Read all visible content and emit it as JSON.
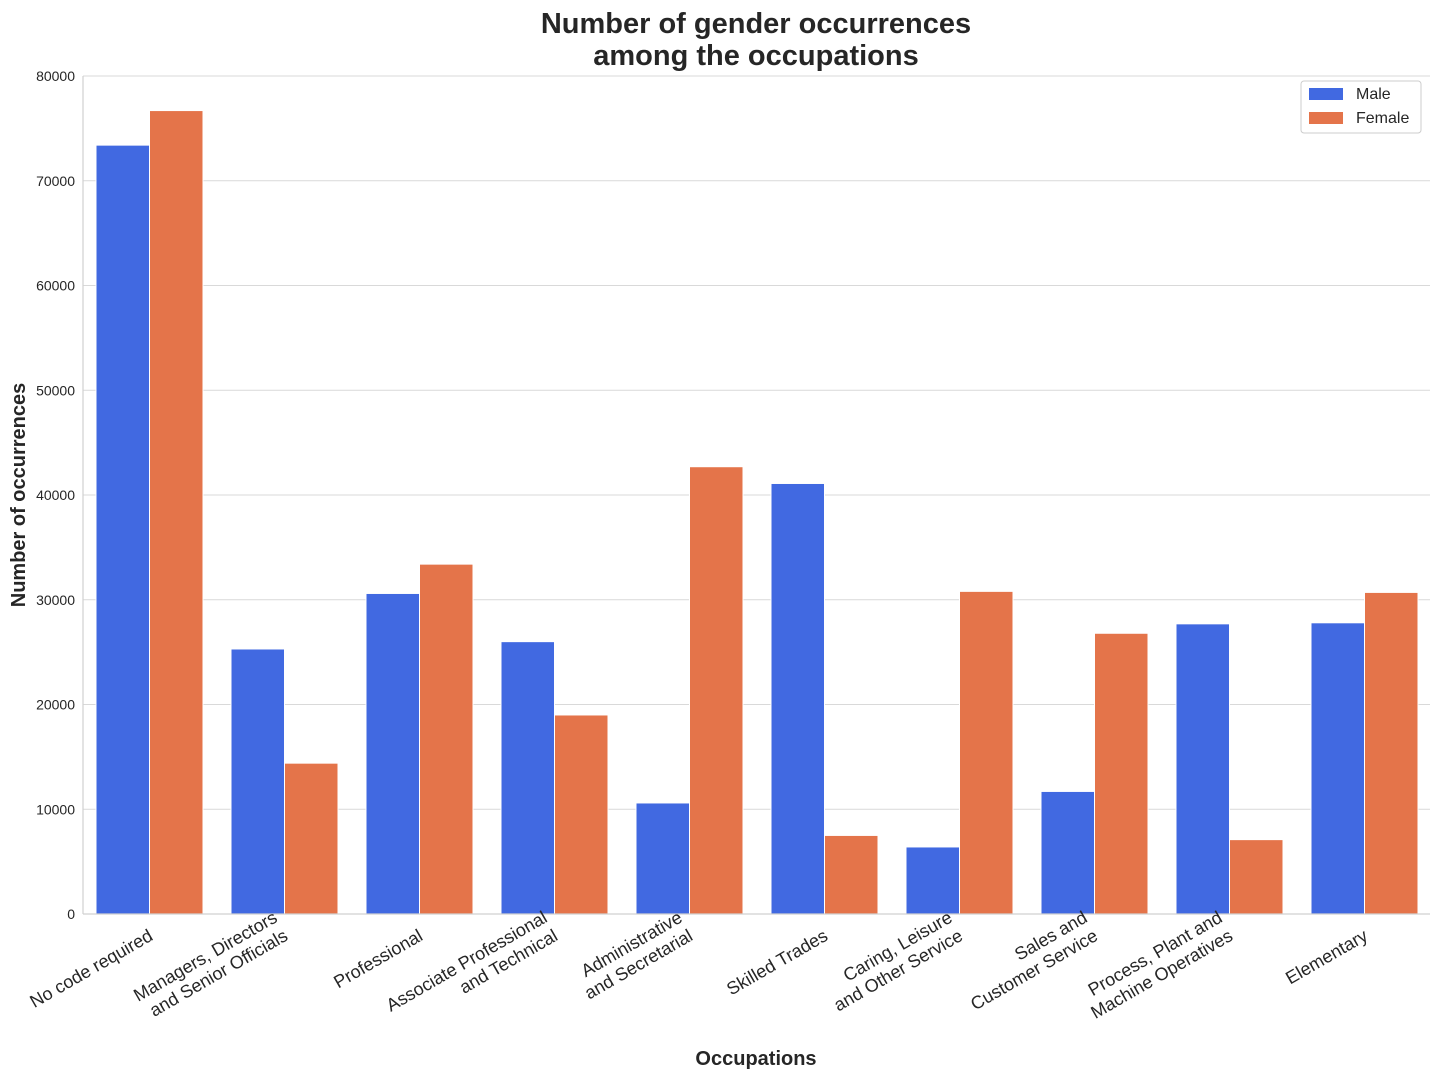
{
  "chart_data": {
    "type": "bar",
    "title": [
      "Number of gender occurrences",
      "among the occupations"
    ],
    "xlabel": "Occupations",
    "ylabel": "Number of occurrences",
    "ylim": [
      0,
      80000
    ],
    "yticks": [
      0,
      10000,
      20000,
      30000,
      40000,
      50000,
      60000,
      70000,
      80000
    ],
    "ytick_labels": [
      "0",
      "10000",
      "20000",
      "30000",
      "40000",
      "50000",
      "60000",
      "70000",
      "80000"
    ],
    "grid": true,
    "grid_axis": "y",
    "legend_position": "top-right",
    "categories": [
      [
        "No code required"
      ],
      [
        "Managers, Directors",
        "and Senior Officials"
      ],
      [
        "Professional"
      ],
      [
        "Associate Professional",
        "and Technical"
      ],
      [
        "Administrative",
        "and Secretarial"
      ],
      [
        "Skilled Trades"
      ],
      [
        "Caring, Leisure",
        "and Other Service"
      ],
      [
        "Sales and",
        "Customer Service"
      ],
      [
        "Process, Plant and",
        "Machine Operatives"
      ],
      [
        "Elementary"
      ]
    ],
    "series": [
      {
        "name": "Male",
        "color": "#4169e1",
        "values": [
          73400,
          25300,
          30600,
          26000,
          10600,
          41100,
          6400,
          11700,
          27700,
          27800
        ]
      },
      {
        "name": "Female",
        "color": "#e4744a",
        "values": [
          76700,
          14400,
          33400,
          19000,
          42700,
          7500,
          30800,
          26800,
          7100,
          30700
        ]
      }
    ]
  }
}
